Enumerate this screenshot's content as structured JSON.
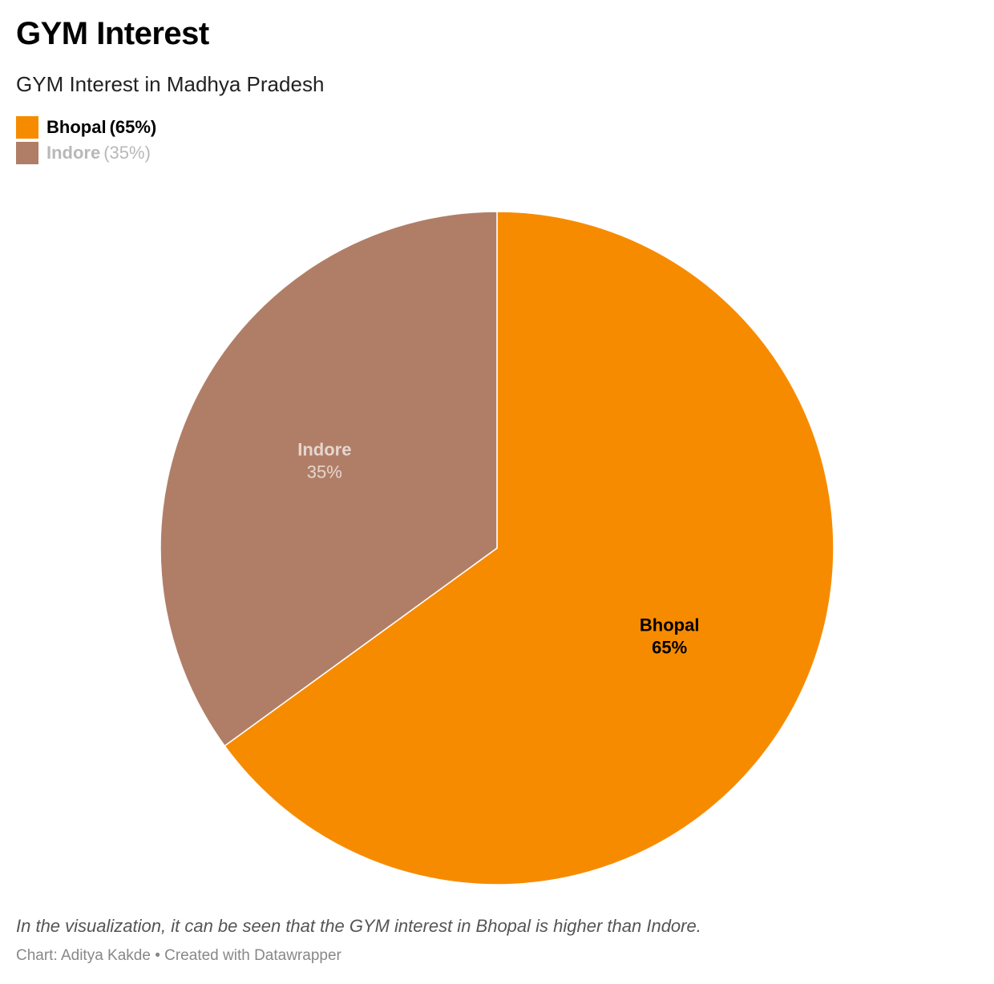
{
  "header": {
    "title": "GYM Interest",
    "subtitle": "GYM Interest in Madhya Pradesh"
  },
  "legend": [
    {
      "name": "Bhopal",
      "pct": "(65%)",
      "color": "#f78b00"
    },
    {
      "name": "Indore",
      "pct": "(35%)",
      "color": "#b07e67"
    }
  ],
  "chart_data": {
    "type": "pie",
    "title": "GYM Interest",
    "subtitle": "GYM Interest in Madhya Pradesh",
    "slices": [
      {
        "label": "Bhopal",
        "value": 65,
        "value_label": "65%",
        "color": "#f78b00",
        "label_color": "#000000"
      },
      {
        "label": "Indore",
        "value": 35,
        "value_label": "35%",
        "color": "#b07e67",
        "label_color": "#e6d6cf"
      }
    ],
    "legend_placement": "top-left"
  },
  "footer": {
    "caption": "In the visualization, it can be seen that the GYM interest in Bhopal is higher than Indore.",
    "credit": "Chart: Aditya Kakde • Created with Datawrapper"
  }
}
